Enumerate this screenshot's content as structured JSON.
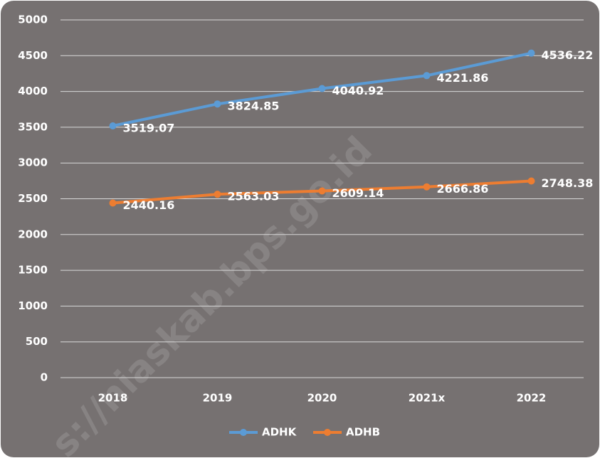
{
  "chart_data": {
    "type": "line",
    "categories": [
      "2018",
      "2019",
      "2020",
      "2021x",
      "2022"
    ],
    "series": [
      {
        "name": "ADHK",
        "color": "#5b9bd5",
        "values": [
          3519.07,
          3824.85,
          4040.92,
          4221.86,
          4536.22
        ]
      },
      {
        "name": "ADHB",
        "color": "#ed7d31",
        "values": [
          2440.16,
          2563.03,
          2609.14,
          2666.86,
          2748.38
        ]
      }
    ],
    "ylim": [
      0,
      5000
    ],
    "yticks": [
      0,
      500,
      1000,
      1500,
      2000,
      2500,
      3000,
      3500,
      4000,
      4500,
      5000
    ],
    "grid": true,
    "legend": "bottom",
    "watermark": "s://niaskab.bps.go.id"
  }
}
